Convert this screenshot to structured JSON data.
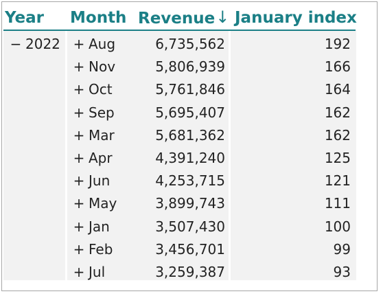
{
  "headers": {
    "year": "Year",
    "month": "Month",
    "revenue": "Revenue",
    "revenue_sort_arrow": "↓",
    "january_index": "January index"
  },
  "year_group": {
    "toggle": "−",
    "label": "2022"
  },
  "rows": [
    {
      "toggle": "+",
      "month": "Aug",
      "revenue": "6,735,562",
      "january_index": "192"
    },
    {
      "toggle": "+",
      "month": "Nov",
      "revenue": "5,806,939",
      "january_index": "166"
    },
    {
      "toggle": "+",
      "month": "Oct",
      "revenue": "5,761,846",
      "january_index": "164"
    },
    {
      "toggle": "+",
      "month": "Sep",
      "revenue": "5,695,407",
      "january_index": "162"
    },
    {
      "toggle": "+",
      "month": "Mar",
      "revenue": "5,681,362",
      "january_index": "162"
    },
    {
      "toggle": "+",
      "month": "Apr",
      "revenue": "4,391,240",
      "january_index": "125"
    },
    {
      "toggle": "+",
      "month": "Jun",
      "revenue": "4,253,715",
      "january_index": "121"
    },
    {
      "toggle": "+",
      "month": "May",
      "revenue": "3,899,743",
      "january_index": "111"
    },
    {
      "toggle": "+",
      "month": "Jan",
      "revenue": "3,507,430",
      "january_index": "100"
    },
    {
      "toggle": "+",
      "month": "Feb",
      "revenue": "3,456,701",
      "january_index": "99"
    },
    {
      "toggle": "+",
      "month": "Jul",
      "revenue": "3,259,387",
      "january_index": "93"
    }
  ],
  "colors": {
    "header_text": "#1b7f86",
    "header_rule": "#1b7f86",
    "shaded_column": "#f2f2f2",
    "border": "#a6a6a6",
    "body_text": "#222222"
  }
}
